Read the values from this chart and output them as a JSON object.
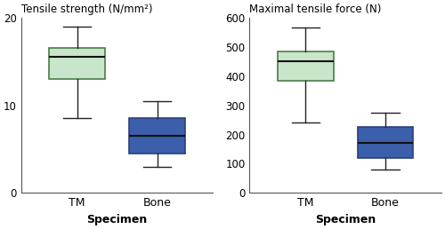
{
  "left_title": "Tensile strength (N/mm²)",
  "right_title": "Maximal tensile force (N)",
  "xlabel": "Specimen",
  "categories": [
    "TM",
    "Bone"
  ],
  "left_ylim": [
    0,
    20
  ],
  "right_ylim": [
    0,
    600
  ],
  "left_yticks": [
    0,
    10,
    20
  ],
  "right_yticks": [
    0,
    100,
    200,
    300,
    400,
    500,
    600
  ],
  "tm_color": "#c8e6c9",
  "bone_color": "#3b5faa",
  "tm_edge_color": "#4a7a4a",
  "bone_edge_color": "#2a3f7a",
  "whisker_color": "#222222",
  "median_color": "#111111",
  "left_boxes": {
    "TM": {
      "whislo": 8.5,
      "q1": 13.0,
      "med": 15.5,
      "q3": 16.5,
      "whishi": 19.0
    },
    "Bone": {
      "whislo": 3.0,
      "q1": 4.5,
      "med": 6.5,
      "q3": 8.5,
      "whishi": 10.5
    }
  },
  "right_boxes": {
    "TM": {
      "whislo": 240,
      "q1": 385,
      "med": 450,
      "q3": 485,
      "whishi": 565
    },
    "Bone": {
      "whislo": 80,
      "q1": 120,
      "med": 170,
      "q3": 225,
      "whishi": 275
    }
  }
}
